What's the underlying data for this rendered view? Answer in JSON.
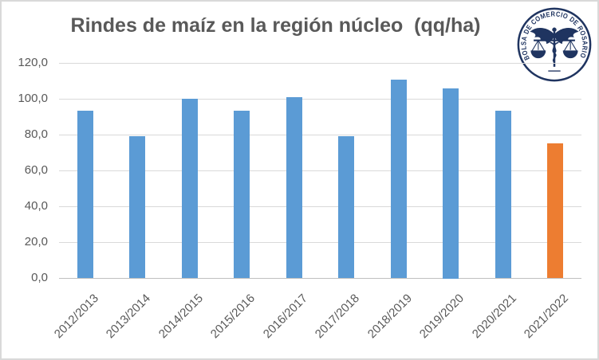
{
  "header": {
    "title": "Rindes de maíz en la región núcleo  (qq/ha)"
  },
  "logo": {
    "name": "bolsa-de-comercio-de-rosario-seal",
    "ring_text": "BOLSA DE COMERCIO DE ROSARIO",
    "color": "#1f3460"
  },
  "chart_data": {
    "type": "bar",
    "title": "Rindes de maíz en la región núcleo (qq/ha)",
    "categories": [
      "2012/2013",
      "2013/2014",
      "2014/2015",
      "2015/2016",
      "2016/2017",
      "2017/2018",
      "2018/2019",
      "2019/2020",
      "2020/2021",
      "2021/2022"
    ],
    "values": [
      93.5,
      79.0,
      100.0,
      93.5,
      101.0,
      79.0,
      110.5,
      106.0,
      93.5,
      75.0
    ],
    "xlabel": "",
    "ylabel": "",
    "ylim": [
      0,
      120
    ],
    "ytick_values": [
      0,
      20,
      40,
      60,
      80,
      100,
      120
    ],
    "ytick_labels": [
      "0,0",
      "20,0",
      "40,0",
      "60,0",
      "80,0",
      "100,0",
      "120,0"
    ],
    "grid": true,
    "legend": "none",
    "bar_color": "#5b9bd5",
    "highlight_index": 9,
    "highlight_color": "#ed7d31",
    "gridline_color": "#d9d9d9",
    "axis_line_color": "#bfbfbf",
    "label_color": "#595959"
  }
}
